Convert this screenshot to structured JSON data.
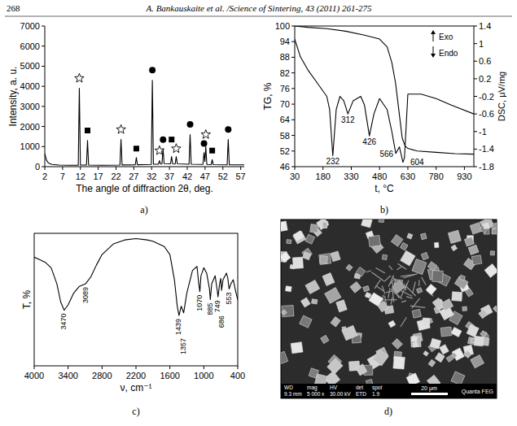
{
  "header": {
    "page": "268",
    "running_title": "A. Bankauskaite et al. /Science of Sintering, 43 (2011) 261-275"
  },
  "panels": [
    "a)",
    "b)",
    "c)",
    "d)"
  ],
  "chart_data": [
    {
      "type": "line",
      "x_label": "The angle of diffraction 2θ, deg.",
      "y_label": "Intensity, a. u.",
      "xlim": [
        2,
        58
      ],
      "xticks": [
        2,
        7,
        12,
        17,
        22,
        27,
        32,
        37,
        42,
        47,
        52,
        57
      ],
      "ylim": [
        0,
        7000
      ],
      "yticks": [
        0,
        1000,
        2000,
        3000,
        4000,
        5000,
        6000,
        7000
      ],
      "series": [
        {
          "type": "line",
          "color": "#000000",
          "x": [
            2,
            2.5,
            3,
            4,
            6,
            9,
            11.4,
            11.7,
            12.0,
            13.7,
            14.0,
            14.3,
            18,
            23.1,
            23.4,
            23.7,
            27.4,
            27.7,
            28.0,
            30,
            31.9,
            32.2,
            32.5,
            33.9,
            34.2,
            34.5,
            34.9,
            35.2,
            35.5,
            37.3,
            37.6,
            37.9,
            38.6,
            38.9,
            39.2,
            42.5,
            42.8,
            43.1,
            46.4,
            46.7,
            46.95,
            47.2,
            47.5,
            48.7,
            49.0,
            49.3,
            53.2,
            53.5,
            53.8,
            58
          ],
          "values": [
            650,
            320,
            180,
            110,
            80,
            70,
            75,
            3900,
            80,
            80,
            1300,
            80,
            70,
            80,
            1350,
            85,
            90,
            450,
            95,
            100,
            110,
            4300,
            120,
            120,
            300,
            130,
            140,
            900,
            150,
            140,
            500,
            140,
            130,
            500,
            140,
            120,
            1600,
            120,
            110,
            700,
            250,
            1000,
            110,
            100,
            350,
            100,
            90,
            1350,
            90,
            90
          ]
        },
        {
          "type": "scatter",
          "marker": "star",
          "color": "#000000",
          "x": [
            11.7,
            23.4,
            34.2,
            38.9,
            47.2
          ],
          "values": [
            4400,
            1850,
            800,
            900,
            1600
          ]
        },
        {
          "type": "scatter",
          "marker": "square",
          "color": "#000000",
          "x": [
            14.0,
            27.7,
            37.6,
            49.0
          ],
          "values": [
            1800,
            900,
            1350,
            800
          ]
        },
        {
          "type": "scatter",
          "marker": "circle",
          "color": "#000000",
          "x": [
            32.2,
            35.2,
            42.8,
            46.7,
            53.5
          ],
          "values": [
            4800,
            1350,
            2100,
            1150,
            1850
          ]
        }
      ]
    },
    {
      "type": "line",
      "x_label": "t, °C",
      "y_label": "TG, %",
      "y2_label": "DSC, μV/mg",
      "exo_label": "Exo",
      "endo_label": "Endo",
      "xlim": [
        30,
        980
      ],
      "xticks": [
        30,
        180,
        330,
        480,
        630,
        780,
        930
      ],
      "ylim": [
        46,
        100
      ],
      "yticks": [
        46,
        52,
        58,
        64,
        70,
        76,
        82,
        88,
        94,
        100
      ],
      "y2lim": [
        -1.8,
        1.4
      ],
      "y2ticks": [
        -1.8,
        -1.4,
        -1,
        -0.6,
        -0.2,
        0.2,
        0.6,
        1,
        1.4
      ],
      "series": [
        {
          "type": "line",
          "color": "#000000",
          "x": [
            30,
            100,
            200,
            300,
            400,
            480,
            520,
            545,
            565,
            585,
            600,
            615,
            630,
            680,
            780,
            880,
            980
          ],
          "values": [
            100,
            99.5,
            99,
            98,
            96.5,
            95,
            92,
            86,
            78,
            66,
            57,
            54,
            53,
            52,
            51.5,
            51,
            50.8
          ]
        },
        {
          "type": "line",
          "axis": "y2",
          "color": "#000000",
          "x": [
            30,
            60,
            100,
            150,
            200,
            215,
            232,
            250,
            270,
            290,
            312,
            340,
            380,
            400,
            426,
            450,
            480,
            520,
            545,
            566,
            585,
            604,
            612,
            630,
            700,
            780,
            860,
            980
          ],
          "values": [
            1.1,
            0.7,
            0.4,
            0.1,
            -0.2,
            -0.5,
            -1.55,
            -0.5,
            -0.2,
            -0.3,
            -0.6,
            -0.3,
            -0.2,
            -0.4,
            -1.1,
            -0.6,
            -0.25,
            -0.5,
            -1.0,
            -1.5,
            -1.35,
            -1.7,
            -1.6,
            -0.15,
            -0.15,
            -0.25,
            -0.4,
            -0.6
          ]
        }
      ],
      "annotations": [
        {
          "x": 232,
          "y": -1.55,
          "text": "232"
        },
        {
          "x": 312,
          "y": -0.6,
          "text": "312"
        },
        {
          "x": 426,
          "y": -1.1,
          "text": "426"
        },
        {
          "x": 566,
          "y": -1.5,
          "text": "566"
        },
        {
          "x": 604,
          "y": -1.7,
          "text": "604"
        }
      ]
    },
    {
      "type": "line",
      "x_label": "ν, cm⁻¹",
      "y_label": "T, %",
      "tick_labels": "x",
      "xlim": [
        4000,
        400
      ],
      "xticks": [
        4000,
        3400,
        2800,
        2200,
        1600,
        1000,
        400
      ],
      "ylim": [
        0,
        100
      ],
      "series": [
        {
          "type": "line",
          "color": "#000000",
          "x": [
            4000,
            3900,
            3800,
            3700,
            3600,
            3530,
            3470,
            3400,
            3300,
            3200,
            3089,
            3000,
            2900,
            2800,
            2600,
            2400,
            2200,
            2000,
            1900,
            1800,
            1700,
            1600,
            1520,
            1470,
            1439,
            1400,
            1357,
            1300,
            1200,
            1120,
            1090,
            1070,
            1050,
            1000,
            950,
            900,
            885,
            860,
            800,
            760,
            749,
            720,
            700,
            686,
            660,
            600,
            575,
            553,
            520,
            480,
            430,
            400
          ],
          "values": [
            82,
            80,
            78,
            74,
            62,
            48,
            42,
            46,
            55,
            60,
            62,
            67,
            76,
            84,
            92,
            95,
            96,
            95,
            94,
            92,
            90,
            84,
            65,
            45,
            38,
            45,
            40,
            55,
            72,
            75,
            62,
            56,
            68,
            74,
            70,
            58,
            50,
            62,
            68,
            56,
            52,
            62,
            66,
            57,
            65,
            70,
            66,
            58,
            62,
            65,
            55,
            50
          ]
        }
      ],
      "annotations": [
        {
          "x": 3470,
          "y": 42,
          "text": "3470"
        },
        {
          "x": 3089,
          "y": 62,
          "text": "3089"
        },
        {
          "x": 1439,
          "y": 38,
          "text": "1439"
        },
        {
          "x": 1357,
          "y": 40,
          "text": "1357"
        },
        {
          "x": 1070,
          "y": 56,
          "text": "1070"
        },
        {
          "x": 885,
          "y": 50,
          "text": "885"
        },
        {
          "x": 749,
          "y": 52,
          "text": "749"
        },
        {
          "x": 686,
          "y": 57,
          "text": "686"
        },
        {
          "x": 553,
          "y": 58,
          "text": "553"
        }
      ]
    }
  ],
  "image": {
    "info_labels": [
      "WD",
      "mag",
      "HV",
      "det",
      "spot"
    ],
    "info_values": [
      "9.3 mm",
      "5 000 x",
      "30.00 kV",
      "ETD",
      "1.9"
    ],
    "scale_bar": "20 μm",
    "instrument": "Quanta FEG"
  }
}
